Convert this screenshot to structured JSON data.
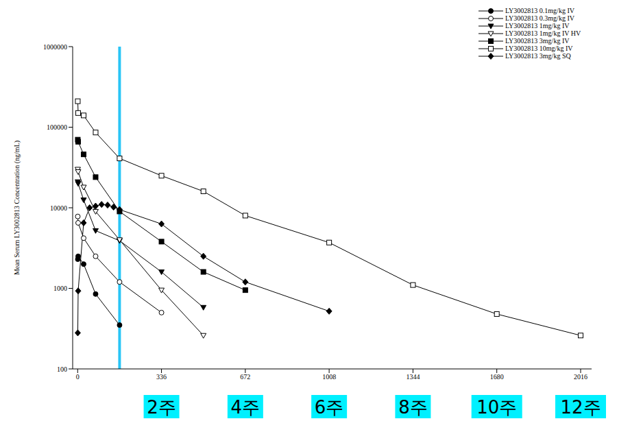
{
  "chart_data": {
    "type": "line",
    "log": "y",
    "ylabel": "Mean Serum LY3002813 Concentration (ng/mL)",
    "xlim": [
      -20,
      2060
    ],
    "xticks": [
      0,
      336,
      672,
      1008,
      1344,
      1680,
      2016
    ],
    "ylim": [
      100,
      1000000
    ],
    "yticks": [
      100,
      1000,
      10000,
      100000,
      1000000
    ],
    "grid": false,
    "legend": "upper right",
    "annotations": [
      {
        "x": 336,
        "label": "2주"
      },
      {
        "x": 672,
        "label": "4주"
      },
      {
        "x": 1008,
        "label": "6주"
      },
      {
        "x": 1344,
        "label": "8주"
      },
      {
        "x": 1680,
        "label": "10주"
      },
      {
        "x": 2016,
        "label": "12주"
      }
    ],
    "reference_lines": [
      {
        "x": 168,
        "color": "#29c5f6"
      }
    ],
    "series": [
      {
        "name": "LY3002813 0.1mg/kg IV",
        "color": "#000000",
        "marker": "circle",
        "x": [
          0.5,
          2,
          24,
          72,
          168
        ],
        "values": [
          2300,
          2500,
          2000,
          850,
          350
        ]
      },
      {
        "name": "LY3002813 0.3mg/kg IV",
        "color": "#000000",
        "marker": "open_circle",
        "x": [
          0.5,
          2,
          24,
          72,
          168,
          336
        ],
        "values": [
          7800,
          6500,
          4200,
          2500,
          1200,
          500
        ]
      },
      {
        "name": "LY3002813 1mg/kg IV",
        "color": "#000000",
        "marker": "triangle_down",
        "x": [
          0.5,
          2,
          24,
          72,
          168,
          336,
          504
        ],
        "values": [
          21000,
          20000,
          12500,
          5200,
          3900,
          1600,
          580
        ]
      },
      {
        "name": "LY3002813 1mg/kg IV HV",
        "color": "#000000",
        "marker": "open_triangle_down",
        "x": [
          0.5,
          2,
          24,
          72,
          168,
          336,
          504
        ],
        "values": [
          30000,
          28000,
          18000,
          9000,
          4000,
          950,
          260
        ]
      },
      {
        "name": "LY3002813 3mg/kg IV",
        "color": "#000000",
        "marker": "square",
        "x": [
          0.5,
          2,
          24,
          72,
          168,
          336,
          504,
          672
        ],
        "values": [
          70000,
          66000,
          46000,
          24000,
          9000,
          3800,
          1600,
          950
        ]
      },
      {
        "name": "LY3002813 10mg/kg IV",
        "color": "#000000",
        "marker": "open_square",
        "x": [
          0.5,
          2,
          24,
          72,
          168,
          336,
          504,
          672,
          1008,
          1344,
          1680,
          2016
        ],
        "values": [
          210000,
          150000,
          140000,
          86000,
          41000,
          25000,
          16000,
          8000,
          3700,
          1100,
          480,
          260
        ]
      },
      {
        "name": "LY3002813 3mg/kg SQ",
        "color": "#000000",
        "marker": "diamond",
        "x": [
          0.5,
          2,
          24,
          48,
          72,
          96,
          120,
          144,
          168,
          336,
          504,
          672,
          1008
        ],
        "values": [
          280,
          930,
          6500,
          10000,
          10500,
          11000,
          10800,
          10200,
          9500,
          6300,
          2500,
          1200,
          520
        ]
      }
    ]
  }
}
